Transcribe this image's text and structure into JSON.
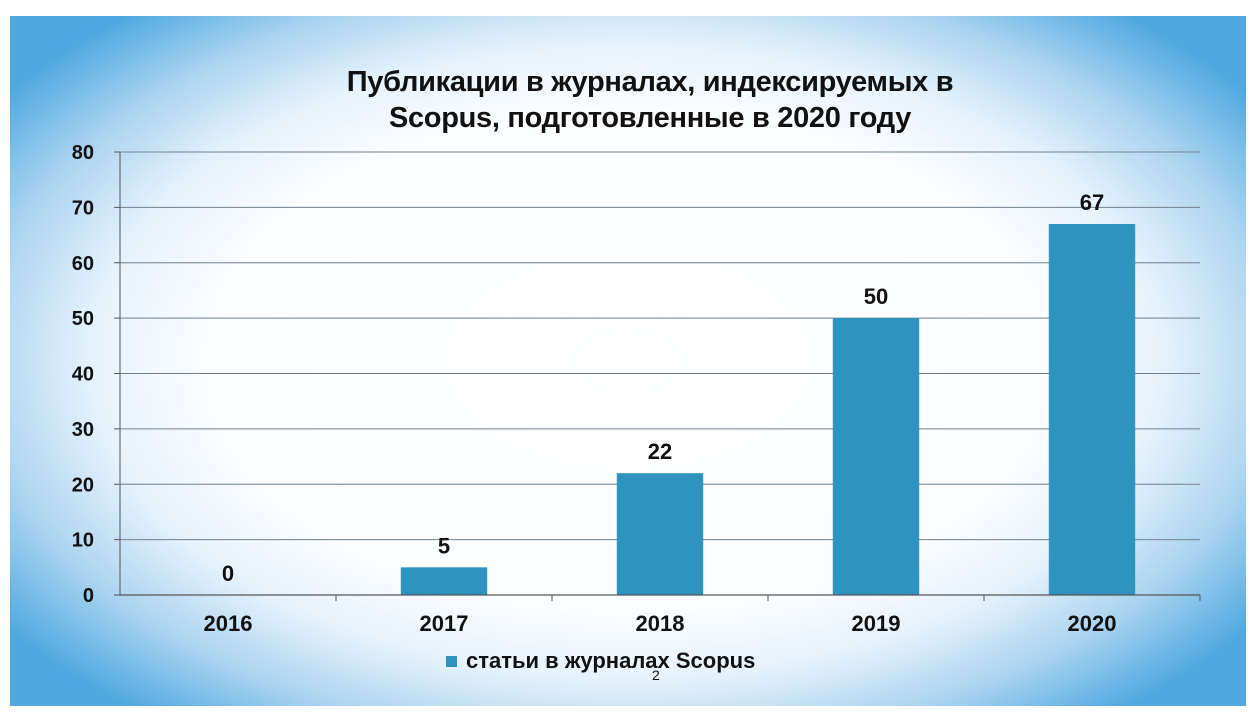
{
  "chart_data": {
    "type": "bar",
    "title_line1": "Публикации в журналах, индексируемых в",
    "title_line2": "Scopus, подготовленные в 2020 году",
    "categories": [
      "2016",
      "2017",
      "2018",
      "2019",
      "2020"
    ],
    "series": [
      {
        "name": "статьи в журналах Scopus",
        "values": [
          0,
          5,
          22,
          50,
          67
        ]
      }
    ],
    "data_labels": [
      "0",
      "5",
      "22",
      "50",
      "67"
    ],
    "y_ticks": [
      "0",
      "10",
      "20",
      "30",
      "40",
      "50",
      "60",
      "70",
      "80"
    ],
    "ylim": [
      0,
      80
    ],
    "grid": true,
    "legend_position": "bottom",
    "bar_color": "#2e93bf"
  },
  "page_number": "2"
}
